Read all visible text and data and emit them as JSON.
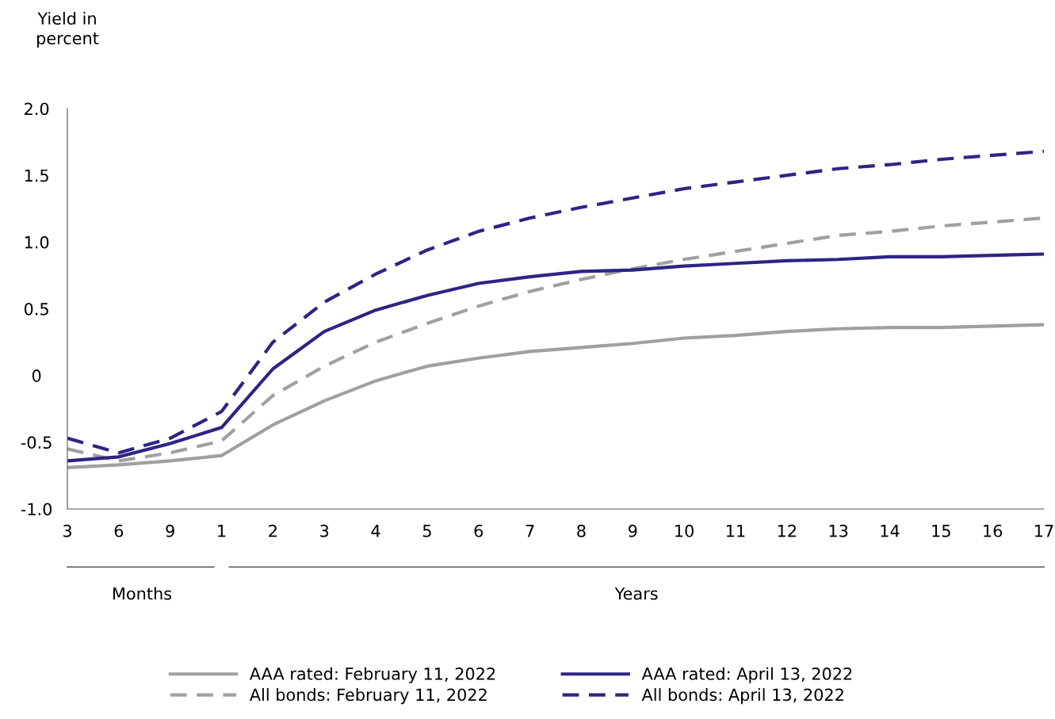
{
  "chart_data": {
    "type": "line",
    "ylabel": "Yield in\npercent",
    "categories": [
      "3",
      "6",
      "9",
      "1",
      "2",
      "3",
      "4",
      "5",
      "6",
      "7",
      "8",
      "9",
      "10",
      "11",
      "12",
      "13",
      "14",
      "15",
      "16",
      "17"
    ],
    "series": [
      {
        "name": "AAA rated: February 11, 2022",
        "color": "#a0a0a0",
        "line_style": "solid",
        "values": [
          -0.69,
          -0.67,
          -0.64,
          -0.6,
          -0.37,
          -0.19,
          -0.04,
          0.07,
          0.13,
          0.18,
          0.21,
          0.24,
          0.28,
          0.3,
          0.33,
          0.35,
          0.36,
          0.36,
          0.37,
          0.38
        ]
      },
      {
        "name": "All bonds: February 11, 2022",
        "color": "#a0a0a0",
        "line_style": "dashed",
        "values": [
          -0.55,
          -0.64,
          -0.58,
          -0.49,
          -0.15,
          0.07,
          0.25,
          0.39,
          0.52,
          0.63,
          0.72,
          0.8,
          0.87,
          0.93,
          0.99,
          1.05,
          1.08,
          1.12,
          1.15,
          1.18
        ]
      },
      {
        "name": "AAA rated: April 13, 2022",
        "color": "#2e2485",
        "line_style": "solid",
        "values": [
          -0.64,
          -0.61,
          -0.51,
          -0.39,
          0.05,
          0.33,
          0.49,
          0.6,
          0.69,
          0.74,
          0.78,
          0.79,
          0.82,
          0.84,
          0.86,
          0.87,
          0.89,
          0.89,
          0.9,
          0.91
        ]
      },
      {
        "name": "All bonds: April 13, 2022",
        "color": "#2e2485",
        "line_style": "dashed",
        "values": [
          -0.47,
          -0.58,
          -0.47,
          -0.27,
          0.25,
          0.55,
          0.76,
          0.94,
          1.08,
          1.18,
          1.26,
          1.33,
          1.4,
          1.45,
          1.5,
          1.55,
          1.58,
          1.62,
          1.65,
          1.68
        ]
      }
    ],
    "ylim": [
      -1.0,
      2.0
    ],
    "yticks": [
      {
        "value": -1.0,
        "label": "-1.0"
      },
      {
        "value": -0.5,
        "label": "-0.5"
      },
      {
        "value": 0,
        "label": "0"
      },
      {
        "value": 0.5,
        "label": "0.5"
      },
      {
        "value": 1.0,
        "label": "1.0"
      },
      {
        "value": 1.5,
        "label": "1.5"
      },
      {
        "value": 2.0,
        "label": "2.0"
      }
    ],
    "annotations": [
      "Months",
      "Years"
    ],
    "grid": false,
    "legend": "bottom",
    "marker": "none"
  }
}
